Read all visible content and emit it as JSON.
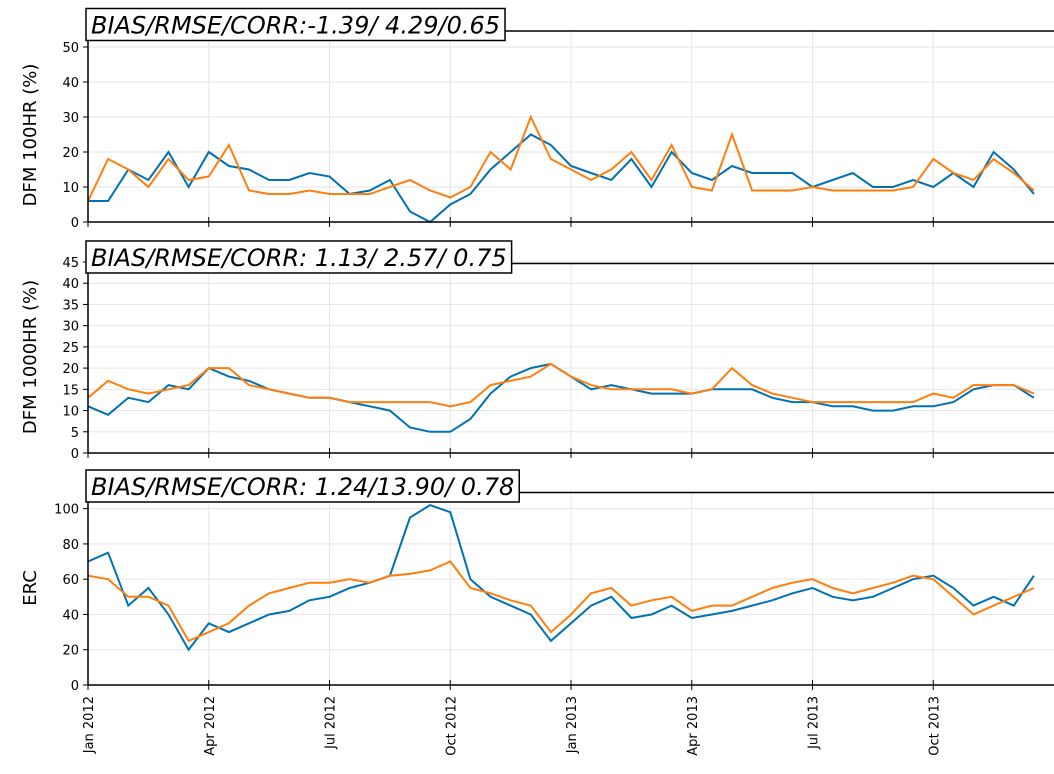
{
  "chart_data": [
    {
      "type": "line",
      "title": "BIAS/RMSE/CORR:-1.39/ 4.29/0.65",
      "ylabel": "DFM 100HR (%)",
      "x": [
        0,
        0.5,
        1,
        1.5,
        2,
        2.5,
        3,
        3.5,
        4,
        4.5,
        5,
        5.5,
        6,
        6.5,
        7,
        7.5,
        8,
        8.5,
        9,
        9.5,
        10,
        10.5,
        11,
        11.5,
        12,
        12.5,
        13,
        13.5,
        14,
        14.5,
        15,
        15.5,
        16,
        16.5,
        17,
        17.5,
        18,
        18.5,
        19,
        19.5,
        20,
        20.5,
        21,
        21.5,
        22,
        22.5,
        23,
        23.5
      ],
      "xlim": [
        0,
        24
      ],
      "xticks": [
        0,
        3,
        6,
        9,
        12,
        15,
        18,
        21
      ],
      "ylim": [
        0,
        55
      ],
      "yticks": [
        0,
        10,
        20,
        30,
        40,
        50
      ],
      "grid": true,
      "series": [
        {
          "color": "#0072b2",
          "values": [
            6,
            6,
            15,
            12,
            20,
            10,
            20,
            16,
            15,
            12,
            12,
            14,
            13,
            8,
            9,
            12,
            3,
            0,
            5,
            8,
            15,
            20,
            25,
            22,
            16,
            14,
            12,
            18,
            10,
            20,
            14,
            12,
            16,
            14,
            14,
            14,
            10,
            12,
            14,
            10,
            10,
            12,
            10,
            14,
            10,
            20,
            15,
            8
          ]
        },
        {
          "color": "#ff7f0e",
          "values": [
            6,
            18,
            15,
            10,
            18,
            12,
            13,
            22,
            9,
            8,
            8,
            9,
            8,
            8,
            8,
            10,
            12,
            9,
            7,
            10,
            20,
            15,
            30,
            18,
            15,
            12,
            15,
            20,
            12,
            22,
            10,
            9,
            25,
            9,
            9,
            9,
            10,
            9,
            9,
            9,
            9,
            10,
            18,
            14,
            12,
            18,
            14,
            9
          ]
        }
      ]
    },
    {
      "type": "line",
      "title": "BIAS/RMSE/CORR: 1.13/ 2.57/ 0.75",
      "ylabel": "DFM 1000HR (%)",
      "x": [
        0,
        0.5,
        1,
        1.5,
        2,
        2.5,
        3,
        3.5,
        4,
        4.5,
        5,
        5.5,
        6,
        6.5,
        7,
        7.5,
        8,
        8.5,
        9,
        9.5,
        10,
        10.5,
        11,
        11.5,
        12,
        12.5,
        13,
        13.5,
        14,
        14.5,
        15,
        15.5,
        16,
        16.5,
        17,
        17.5,
        18,
        18.5,
        19,
        19.5,
        20,
        20.5,
        21,
        21.5,
        22,
        22.5,
        23,
        23.5
      ],
      "xlim": [
        0,
        24
      ],
      "xticks": [
        0,
        3,
        6,
        9,
        12,
        15,
        18,
        21
      ],
      "ylim": [
        0,
        45
      ],
      "yticks": [
        0,
        5,
        10,
        15,
        20,
        25,
        30,
        35,
        40,
        45
      ],
      "grid": true,
      "series": [
        {
          "color": "#0072b2",
          "values": [
            11,
            9,
            13,
            12,
            16,
            15,
            20,
            18,
            17,
            15,
            14,
            13,
            13,
            12,
            11,
            10,
            6,
            5,
            5,
            8,
            14,
            18,
            20,
            21,
            18,
            15,
            16,
            15,
            14,
            14,
            14,
            15,
            15,
            15,
            13,
            12,
            12,
            11,
            11,
            10,
            10,
            11,
            11,
            12,
            15,
            16,
            16,
            13
          ]
        },
        {
          "color": "#ff7f0e",
          "values": [
            13,
            17,
            15,
            14,
            15,
            16,
            20,
            20,
            16,
            15,
            14,
            13,
            13,
            12,
            12,
            12,
            12,
            12,
            11,
            12,
            16,
            17,
            18,
            21,
            18,
            16,
            15,
            15,
            15,
            15,
            14,
            15,
            20,
            16,
            14,
            13,
            12,
            12,
            12,
            12,
            12,
            12,
            14,
            13,
            16,
            16,
            16,
            14
          ]
        }
      ]
    },
    {
      "type": "line",
      "title": "BIAS/RMSE/CORR: 1.24/13.90/ 0.78",
      "ylabel": "ERC",
      "x": [
        0,
        0.5,
        1,
        1.5,
        2,
        2.5,
        3,
        3.5,
        4,
        4.5,
        5,
        5.5,
        6,
        6.5,
        7,
        7.5,
        8,
        8.5,
        9,
        9.5,
        10,
        10.5,
        11,
        11.5,
        12,
        12.5,
        13,
        13.5,
        14,
        14.5,
        15,
        15.5,
        16,
        16.5,
        17,
        17.5,
        18,
        18.5,
        19,
        19.5,
        20,
        20.5,
        21,
        21.5,
        22,
        22.5,
        23,
        23.5
      ],
      "xlim": [
        0,
        24
      ],
      "xticks": [
        {
          "value": 0,
          "label": "Jan 2012"
        },
        {
          "value": 3,
          "label": "Apr 2012"
        },
        {
          "value": 6,
          "label": "Jul 2012"
        },
        {
          "value": 9,
          "label": "Oct 2012"
        },
        {
          "value": 12,
          "label": "Jan 2013"
        },
        {
          "value": 15,
          "label": "Apr 2013"
        },
        {
          "value": 18,
          "label": "Jul 2013"
        },
        {
          "value": 21,
          "label": "Oct 2013"
        }
      ],
      "ylim": [
        0,
        110
      ],
      "yticks": [
        0,
        20,
        40,
        60,
        80,
        100
      ],
      "grid": true,
      "series": [
        {
          "color": "#0072b2",
          "values": [
            70,
            75,
            45,
            55,
            40,
            20,
            35,
            30,
            35,
            40,
            42,
            48,
            50,
            55,
            58,
            62,
            95,
            102,
            98,
            60,
            50,
            45,
            40,
            25,
            35,
            45,
            50,
            38,
            40,
            45,
            38,
            40,
            42,
            45,
            48,
            52,
            55,
            50,
            48,
            50,
            55,
            60,
            62,
            55,
            45,
            50,
            45,
            62
          ]
        },
        {
          "color": "#ff7f0e",
          "values": [
            62,
            60,
            50,
            50,
            45,
            25,
            30,
            35,
            45,
            52,
            55,
            58,
            58,
            60,
            58,
            62,
            63,
            65,
            70,
            55,
            52,
            48,
            45,
            30,
            40,
            52,
            55,
            45,
            48,
            50,
            42,
            45,
            45,
            50,
            55,
            58,
            60,
            55,
            52,
            55,
            58,
            62,
            60,
            50,
            40,
            45,
            50,
            55
          ]
        }
      ]
    }
  ]
}
